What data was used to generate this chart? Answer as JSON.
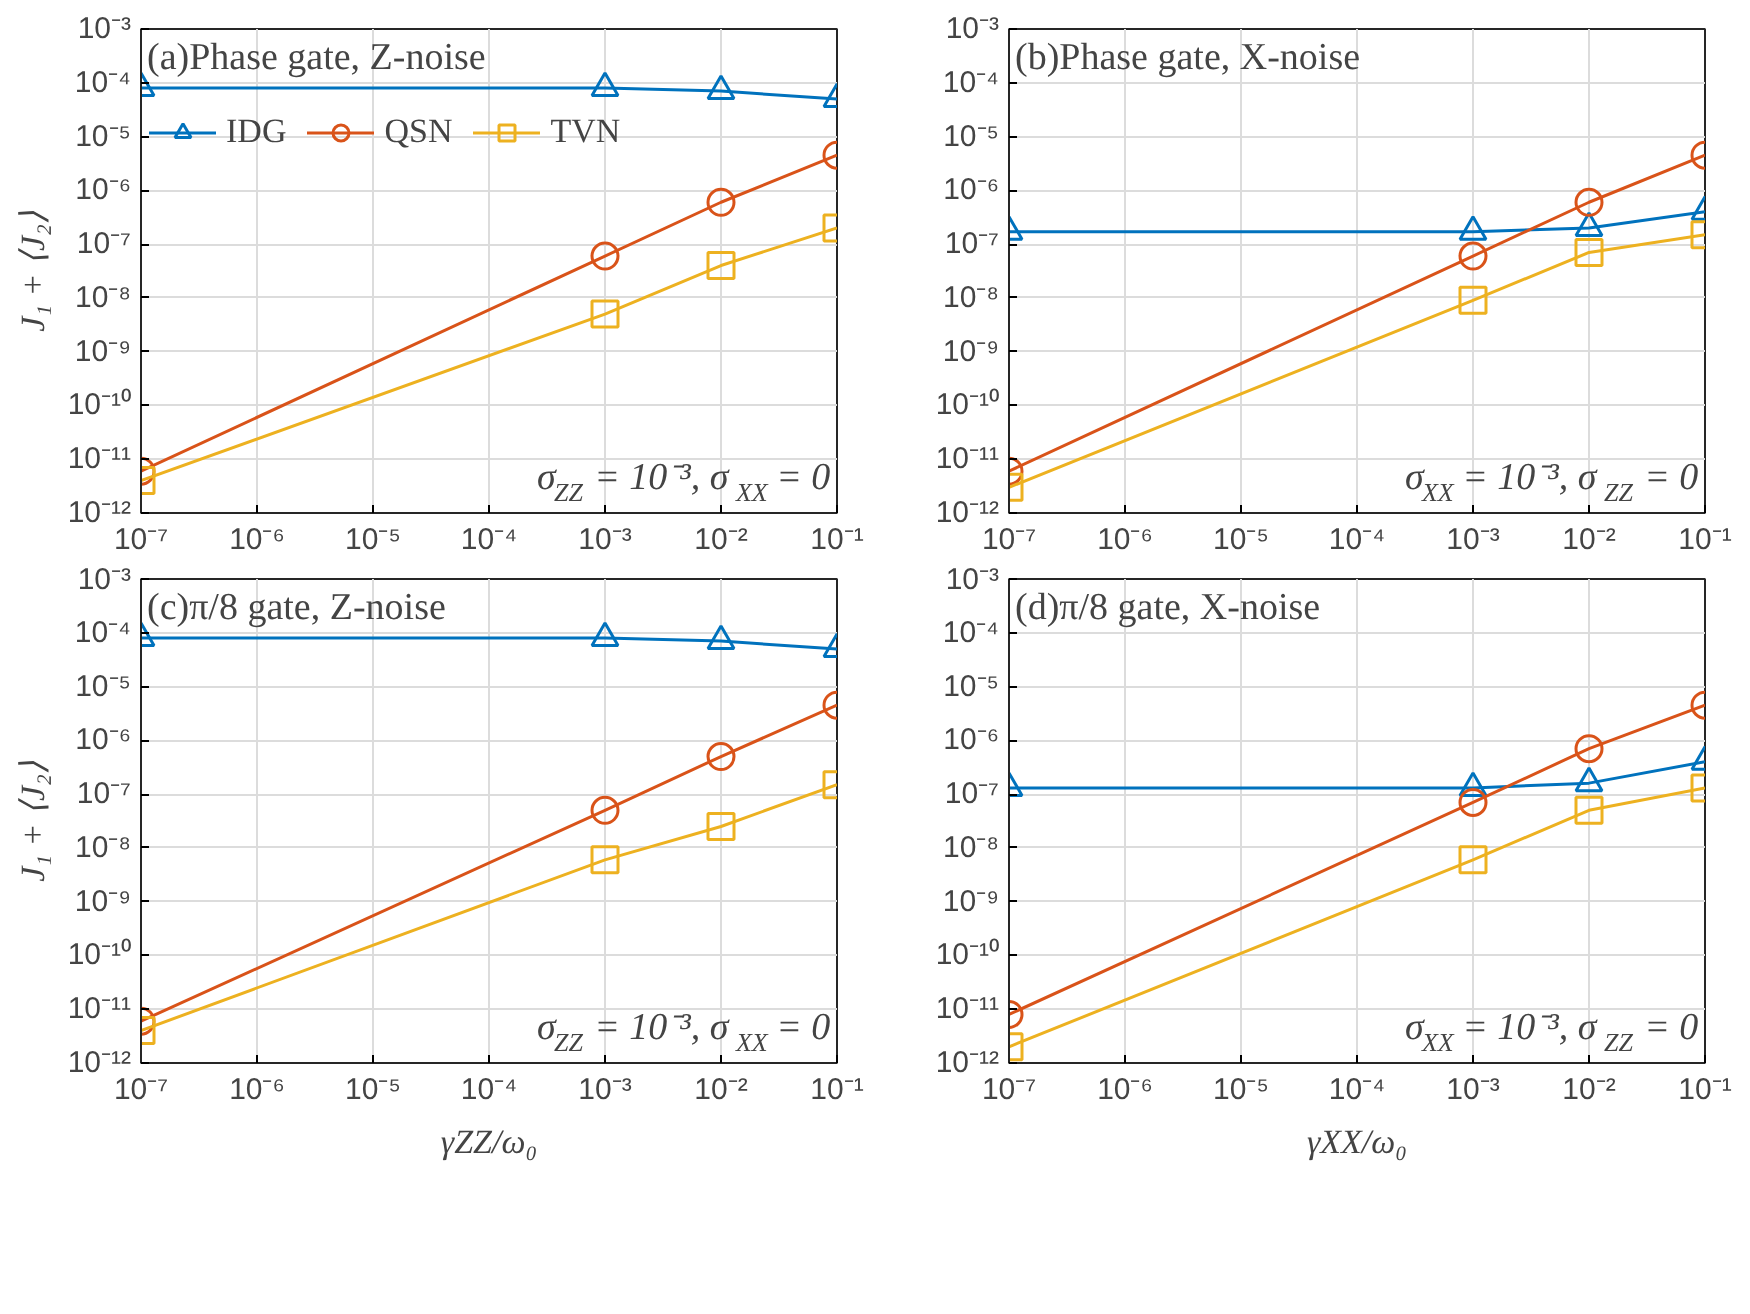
{
  "chart_data": [
    {
      "type": "line",
      "title": "(a)Phase gate, Z-noise",
      "ylabel": "J₁ + ⟨J₂⟩",
      "x": [
        1e-07,
        0.001,
        0.01,
        0.1
      ],
      "log": "xy",
      "grid": true,
      "legend": "top",
      "xlim": [
        1e-07,
        0.1
      ],
      "ylim": [
        1e-12,
        0.001
      ],
      "xticks": [
        {
          "value": 1e-07,
          "label": "10⁻⁷"
        },
        {
          "value": 1e-06,
          "label": "10⁻⁶"
        },
        {
          "value": 1e-05,
          "label": "10⁻⁵"
        },
        {
          "value": 0.0001,
          "label": "10⁻⁴"
        },
        {
          "value": 0.001,
          "label": "10⁻³"
        },
        {
          "value": 0.01,
          "label": "10⁻²"
        },
        {
          "value": 0.1,
          "label": "10⁻¹"
        }
      ],
      "yticks": [
        {
          "value": 1e-12,
          "label": "10⁻¹²"
        },
        {
          "value": 1e-11,
          "label": "10⁻¹¹"
        },
        {
          "value": 1e-10,
          "label": "10⁻¹⁰"
        },
        {
          "value": 1e-09,
          "label": "10⁻⁹"
        },
        {
          "value": 1e-08,
          "label": "10⁻⁸"
        },
        {
          "value": 1e-07,
          "label": "10⁻⁷"
        },
        {
          "value": 1e-06,
          "label": "10⁻⁶"
        },
        {
          "value": 1e-05,
          "label": "10⁻⁵"
        },
        {
          "value": 0.0001,
          "label": "10⁻⁴"
        },
        {
          "value": 0.001,
          "label": "10⁻³"
        }
      ],
      "annotations": [
        "σ$_{ZZ}$ = 10⁻³, σ$_{XX}$ = 0"
      ],
      "series": [
        {
          "name": "IDG",
          "color": "#0072bd",
          "marker": "triangle",
          "values": [
            8e-05,
            8e-05,
            7e-05,
            5e-05
          ]
        },
        {
          "name": "QSN",
          "color": "#d95319",
          "marker": "circle",
          "values": [
            6e-12,
            6e-08,
            6e-07,
            4.5e-06
          ]
        },
        {
          "name": "TVN",
          "color": "#edb120",
          "marker": "square",
          "values": [
            4e-12,
            5e-09,
            4e-08,
            2e-07
          ]
        }
      ]
    },
    {
      "type": "line",
      "title": "(b)Phase gate, X-noise",
      "x": [
        1e-07,
        0.001,
        0.01,
        0.1
      ],
      "log": "xy",
      "grid": true,
      "xlim": [
        1e-07,
        0.1
      ],
      "ylim": [
        1e-12,
        0.001
      ],
      "xticks": [
        {
          "value": 1e-07,
          "label": "10⁻⁷"
        },
        {
          "value": 1e-06,
          "label": "10⁻⁶"
        },
        {
          "value": 1e-05,
          "label": "10⁻⁵"
        },
        {
          "value": 0.0001,
          "label": "10⁻⁴"
        },
        {
          "value": 0.001,
          "label": "10⁻³"
        },
        {
          "value": 0.01,
          "label": "10⁻²"
        },
        {
          "value": 0.1,
          "label": "10⁻¹"
        }
      ],
      "yticks": [
        {
          "value": 1e-12,
          "label": "10⁻¹²"
        },
        {
          "value": 1e-11,
          "label": "10⁻¹¹"
        },
        {
          "value": 1e-10,
          "label": "10⁻¹⁰"
        },
        {
          "value": 1e-09,
          "label": "10⁻⁹"
        },
        {
          "value": 1e-08,
          "label": "10⁻⁸"
        },
        {
          "value": 1e-07,
          "label": "10⁻⁷"
        },
        {
          "value": 1e-06,
          "label": "10⁻⁶"
        },
        {
          "value": 1e-05,
          "label": "10⁻⁵"
        },
        {
          "value": 0.0001,
          "label": "10⁻⁴"
        },
        {
          "value": 0.001,
          "label": "10⁻³"
        }
      ],
      "annotations": [
        "σ$_{XX}$ = 10⁻³, σ$_{ZZ}$ = 0"
      ],
      "series": [
        {
          "color": "#0072bd",
          "marker": "triangle",
          "values": [
            1.7e-07,
            1.7e-07,
            2e-07,
            4e-07
          ]
        },
        {
          "color": "#d95319",
          "marker": "circle",
          "values": [
            6e-12,
            6e-08,
            6e-07,
            4.5e-06
          ]
        },
        {
          "color": "#edb120",
          "marker": "square",
          "values": [
            3e-12,
            9e-09,
            7e-08,
            1.5e-07
          ]
        }
      ]
    },
    {
      "type": "line",
      "title": "(c)π/8 gate, Z-noise",
      "ylabel": "J₁ + ⟨J₂⟩",
      "xlabel": "γZZ/ω₀",
      "x": [
        1e-07,
        0.001,
        0.01,
        0.1
      ],
      "log": "xy",
      "grid": true,
      "xlim": [
        1e-07,
        0.1
      ],
      "ylim": [
        1e-12,
        0.001
      ],
      "xticks": [
        {
          "value": 1e-07,
          "label": "10⁻⁷"
        },
        {
          "value": 1e-06,
          "label": "10⁻⁶"
        },
        {
          "value": 1e-05,
          "label": "10⁻⁵"
        },
        {
          "value": 0.0001,
          "label": "10⁻⁴"
        },
        {
          "value": 0.001,
          "label": "10⁻³"
        },
        {
          "value": 0.01,
          "label": "10⁻²"
        },
        {
          "value": 0.1,
          "label": "10⁻¹"
        }
      ],
      "yticks": [
        {
          "value": 1e-12,
          "label": "10⁻¹²"
        },
        {
          "value": 1e-11,
          "label": "10⁻¹¹"
        },
        {
          "value": 1e-10,
          "label": "10⁻¹⁰"
        },
        {
          "value": 1e-09,
          "label": "10⁻⁹"
        },
        {
          "value": 1e-08,
          "label": "10⁻⁸"
        },
        {
          "value": 1e-07,
          "label": "10⁻⁷"
        },
        {
          "value": 1e-06,
          "label": "10⁻⁶"
        },
        {
          "value": 1e-05,
          "label": "10⁻⁵"
        },
        {
          "value": 0.0001,
          "label": "10⁻⁴"
        },
        {
          "value": 0.001,
          "label": "10⁻³"
        }
      ],
      "annotations": [
        "σ$_{ZZ}$ = 10⁻³, σ$_{XX}$ = 0"
      ],
      "series": [
        {
          "color": "#0072bd",
          "marker": "triangle",
          "values": [
            8e-05,
            8e-05,
            7e-05,
            5e-05
          ]
        },
        {
          "color": "#d95319",
          "marker": "circle",
          "values": [
            6e-12,
            5e-08,
            5e-07,
            4.5e-06
          ]
        },
        {
          "color": "#edb120",
          "marker": "square",
          "values": [
            4e-12,
            6e-09,
            2.5e-08,
            1.5e-07
          ]
        }
      ]
    },
    {
      "type": "line",
      "title": "(d)π/8 gate, X-noise",
      "xlabel": "γXX/ω₀",
      "x": [
        1e-07,
        0.001,
        0.01,
        0.1
      ],
      "log": "xy",
      "grid": true,
      "xlim": [
        1e-07,
        0.1
      ],
      "ylim": [
        1e-12,
        0.001
      ],
      "xticks": [
        {
          "value": 1e-07,
          "label": "10⁻⁷"
        },
        {
          "value": 1e-06,
          "label": "10⁻⁶"
        },
        {
          "value": 1e-05,
          "label": "10⁻⁵"
        },
        {
          "value": 0.0001,
          "label": "10⁻⁴"
        },
        {
          "value": 0.001,
          "label": "10⁻³"
        },
        {
          "value": 0.01,
          "label": "10⁻²"
        },
        {
          "value": 0.1,
          "label": "10⁻¹"
        }
      ],
      "yticks": [
        {
          "value": 1e-12,
          "label": "10⁻¹²"
        },
        {
          "value": 1e-11,
          "label": "10⁻¹¹"
        },
        {
          "value": 1e-10,
          "label": "10⁻¹⁰"
        },
        {
          "value": 1e-09,
          "label": "10⁻⁹"
        },
        {
          "value": 1e-08,
          "label": "10⁻⁸"
        },
        {
          "value": 1e-07,
          "label": "10⁻⁷"
        },
        {
          "value": 1e-06,
          "label": "10⁻⁶"
        },
        {
          "value": 1e-05,
          "label": "10⁻⁵"
        },
        {
          "value": 0.0001,
          "label": "10⁻⁴"
        },
        {
          "value": 0.001,
          "label": "10⁻³"
        }
      ],
      "annotations": [
        "σ$_{XX}$ = 10⁻³, σ$_{ZZ}$ = 0"
      ],
      "series": [
        {
          "color": "#0072bd",
          "marker": "triangle",
          "values": [
            1.3e-07,
            1.3e-07,
            1.6e-07,
            4e-07
          ]
        },
        {
          "color": "#d95319",
          "marker": "circle",
          "values": [
            8e-12,
            7e-08,
            7e-07,
            4.5e-06
          ]
        },
        {
          "color": "#edb120",
          "marker": "square",
          "values": [
            2e-12,
            6e-09,
            5e-08,
            1.3e-07
          ]
        }
      ]
    }
  ]
}
